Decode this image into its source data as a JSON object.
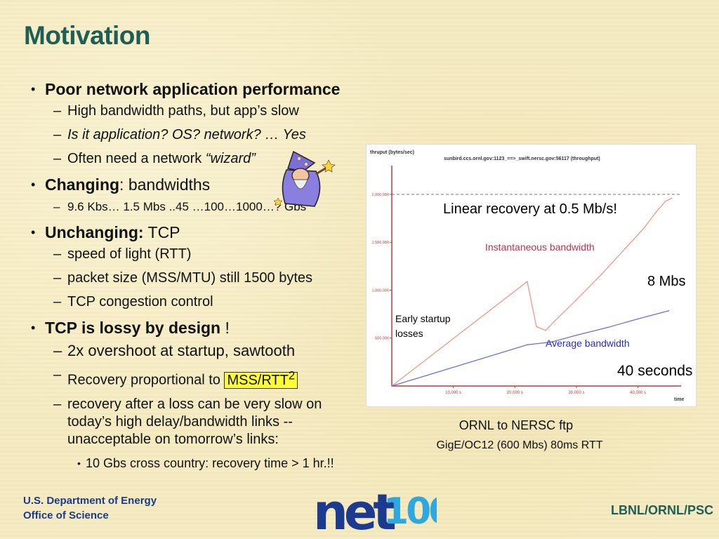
{
  "slide": {
    "title": "Motivation",
    "bullets": {
      "b1": "Poor network application performance",
      "b1_s1": "High bandwidth paths, but app’s slow",
      "b1_s2": "Is it application? OS? network?  … Yes",
      "b1_s3_pre": "Often need a network ",
      "b1_s3_em": "“wizard”",
      "b2_bold": "Changing",
      "b2_rest": ": bandwidths",
      "b2_s1": "9.6 Kbs… 1.5 Mbs ..45 …100…1000…? Gbs",
      "b3_bold": "Unchanging:",
      "b3_rest": "  TCP",
      "b3_s1": "speed of light (RTT)",
      "b3_s2": "packet size (MSS/MTU) still 1500 bytes",
      "b3_s3": "TCP congestion control",
      "b4_bold": "TCP is lossy by design",
      "b4_rest": " !",
      "b4_s1": "2x overshoot at startup, sawtooth",
      "b4_s2_pre": "Recovery proportional to ",
      "b4_s2_hl": "MSS/RTT",
      "b4_s2_sup": "2",
      "b4_s3": "recovery after a loss can be very slow on today’s high delay/bandwidth links -- unacceptable on tomorrow’s links:",
      "b4_s3_1": "10 Gbs cross country: recovery time > 1 hr.!!"
    }
  },
  "chart": {
    "header_left": "thruput (bytes/sec)",
    "header_title": "sunbird.ccs.ornl.gov:1123_==>_swift.nersc.gov:56117 (throughput)",
    "yticks": [
      "2,000,000",
      "1,500,000",
      "1,000,000",
      "500,000"
    ],
    "xticks": [
      "10,000 s",
      "20,000 s",
      "30,000 s",
      "40,000 s"
    ],
    "xaxis_label": "time",
    "annotations": {
      "linear": "Linear recovery at 0.5 Mb/s!",
      "inst": "Instantaneous bandwidth",
      "mbs": "8 Mbs",
      "early1": "Early startup",
      "early2": "losses",
      "avg": "Average bandwidth",
      "secs": "40 seconds"
    },
    "caption1": "ORNL to NERSC ftp",
    "caption2": "GigE/OC12 (600 Mbs)  80ms RTT",
    "colors": {
      "instantaneous": "#f4968a",
      "average": "#6b70e0",
      "cap": "#666666"
    }
  },
  "chart_data": {
    "type": "line",
    "xlabel": "time",
    "ylabel": "thruput (bytes/sec)",
    "xlim": [
      0,
      47000
    ],
    "ylim": [
      0,
      2300000
    ],
    "xticks": [
      10000,
      20000,
      30000,
      40000
    ],
    "yticks": [
      500000,
      1000000,
      1500000,
      2000000
    ],
    "reference_line": 2000000,
    "series": [
      {
        "name": "Instantaneous bandwidth",
        "x": [
          0,
          22000,
          23500,
          25000,
          26500,
          30000,
          34000,
          38000,
          41000,
          43000,
          44500,
          45500
        ],
        "y": [
          0,
          1090000,
          620000,
          580000,
          680000,
          900000,
          1160000,
          1440000,
          1650000,
          1820000,
          1930000,
          1960000
        ]
      },
      {
        "name": "Average bandwidth",
        "x": [
          0,
          22000,
          26000,
          30000,
          35000,
          40000,
          45000
        ],
        "y": [
          0,
          430000,
          460000,
          530000,
          610000,
          700000,
          785000
        ]
      }
    ]
  },
  "footer": {
    "org1": "U.S. Department of Energy",
    "org2": "Office of Science",
    "logo": "net100",
    "right": "LBNL/ORNL/PSC"
  }
}
